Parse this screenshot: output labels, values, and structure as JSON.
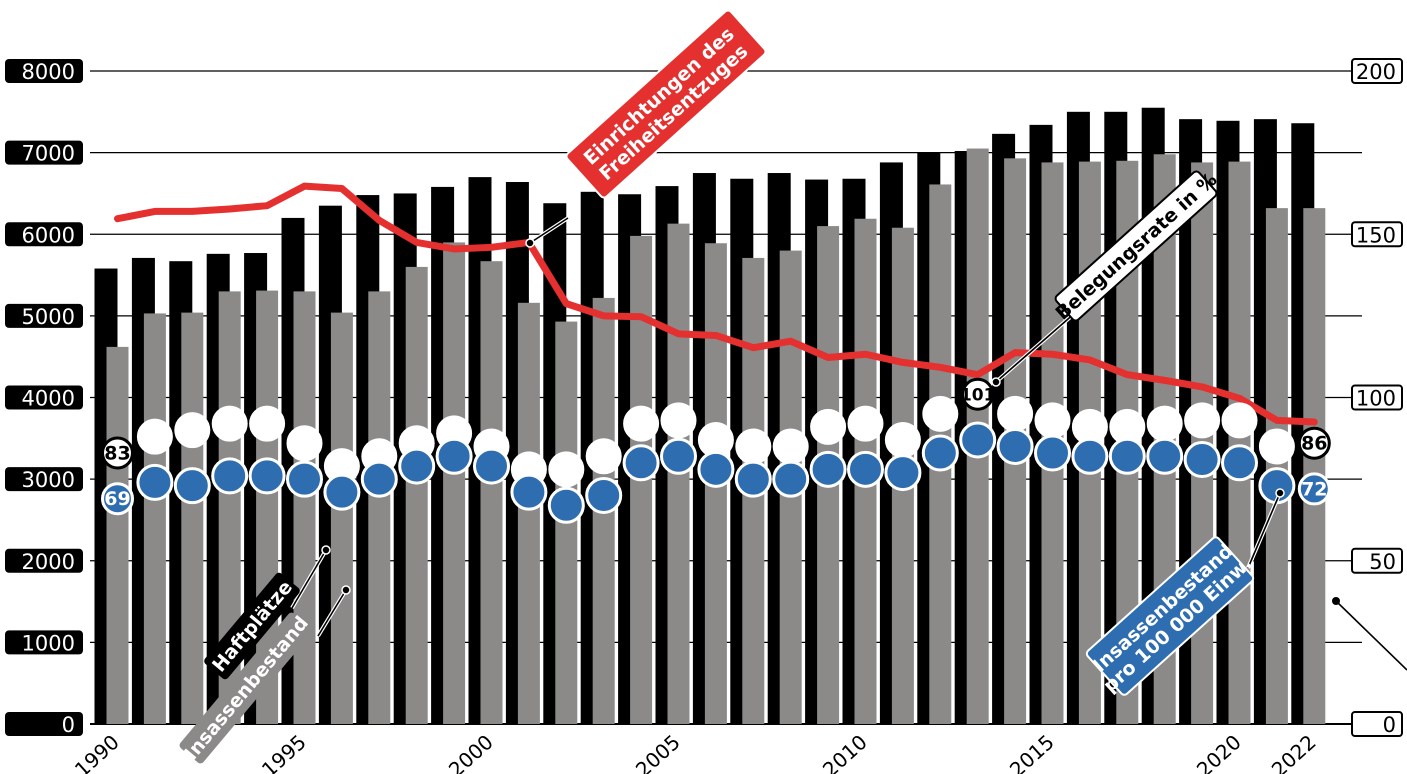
{
  "chart_data": {
    "type": "bar",
    "x": [
      1990,
      1991,
      1992,
      1993,
      1994,
      1995,
      1996,
      1997,
      1998,
      1999,
      2000,
      2001,
      2002,
      2003,
      2004,
      2005,
      2006,
      2007,
      2008,
      2009,
      2010,
      2011,
      2012,
      2013,
      2014,
      2015,
      2016,
      2017,
      2018,
      2019,
      2020,
      2021,
      2022
    ],
    "x_tick_labels": [
      "1990",
      "1995",
      "2000",
      "2005",
      "2010",
      "2015",
      "2020",
      "2022"
    ],
    "x_tick_values": [
      1990,
      1995,
      2000,
      2005,
      2010,
      2015,
      2020,
      2022
    ],
    "y_left": {
      "ticks": [
        "0",
        "1000",
        "2000",
        "3000",
        "4000",
        "5000",
        "6000",
        "7000",
        "8000"
      ],
      "ylim": [
        0,
        8000
      ]
    },
    "y_right": {
      "ticks": [
        "0",
        "50",
        "100",
        "150",
        "200"
      ],
      "ylim": [
        0,
        200
      ]
    },
    "series": [
      {
        "name": "Haftplätze",
        "type": "bar",
        "axis": "left",
        "color": "#000000",
        "values": [
          5580,
          5710,
          5670,
          5760,
          5770,
          6200,
          6350,
          6480,
          6500,
          6580,
          6700,
          6640,
          6380,
          6520,
          6490,
          6590,
          6750,
          6680,
          6750,
          6670,
          6680,
          6880,
          7000,
          7020,
          7230,
          7340,
          7500,
          7500,
          7550,
          7410,
          7390,
          7410,
          7360
        ]
      },
      {
        "name": "Insassenbestand",
        "type": "bar",
        "axis": "left",
        "color": "#8c8a89",
        "values": [
          4620,
          5030,
          5040,
          5300,
          5310,
          5300,
          5040,
          5300,
          5600,
          5900,
          5670,
          5160,
          4930,
          5220,
          5980,
          6130,
          5890,
          5710,
          5800,
          6100,
          6190,
          6080,
          6610,
          7050,
          6930,
          6880,
          6890,
          6900,
          6980,
          6880,
          6890,
          6320,
          6320
        ]
      },
      {
        "name": "Einrichtungen des Freiheitsentzuges",
        "type": "line",
        "axis": "left",
        "color": "#e53030",
        "values": [
          6190,
          6280,
          6280,
          6310,
          6350,
          6590,
          6560,
          6170,
          5900,
          5820,
          5840,
          5900,
          5150,
          5000,
          4990,
          4780,
          4760,
          4610,
          4690,
          4490,
          4530,
          4430,
          4370,
          4280,
          4550,
          4530,
          4460,
          4280,
          4210,
          4130,
          3990,
          3720,
          3700
        ]
      },
      {
        "name": "Belegungsrate in %",
        "type": "scatter",
        "axis": "right",
        "color": "#ffffff",
        "values": [
          83,
          88,
          90,
          92,
          92,
          86,
          79,
          82,
          86,
          89,
          85,
          78,
          78,
          82,
          92,
          93,
          87,
          85,
          85,
          91,
          92,
          87,
          95,
          101,
          95,
          93,
          91,
          91,
          92,
          93,
          93,
          85,
          86
        ]
      },
      {
        "name": "Insassenbestand pro 100 000 Einw.",
        "type": "scatter",
        "axis": "right",
        "color": "#2e6db0",
        "values": [
          69,
          74,
          73,
          76,
          76,
          75,
          71,
          75,
          79,
          82,
          79,
          71,
          67,
          70,
          80,
          82,
          78,
          75,
          75,
          78,
          78,
          77,
          83,
          87,
          85,
          83,
          82,
          82,
          82,
          81,
          80,
          73,
          72
        ]
      }
    ],
    "labels": {
      "haftplaetze": "Haftplätze",
      "insassenbestand": "Insassenbestand",
      "einrichtungen_line1": "Einrichtungen des",
      "einrichtungen_line2": "Freiheitsentzuges",
      "belegungsrate": "Belegungsrate in %",
      "pro_line1": "Insassenbestand",
      "pro_line2": "pro 100 000 Einw."
    },
    "value_labels": [
      {
        "series": 3,
        "index": 0,
        "text": "83"
      },
      {
        "series": 4,
        "index": 0,
        "text": "69"
      },
      {
        "series": 3,
        "index": 23,
        "text": "101"
      },
      {
        "series": 3,
        "index": 32,
        "text": "86"
      },
      {
        "series": 4,
        "index": 32,
        "text": "72"
      }
    ],
    "grid": true
  }
}
